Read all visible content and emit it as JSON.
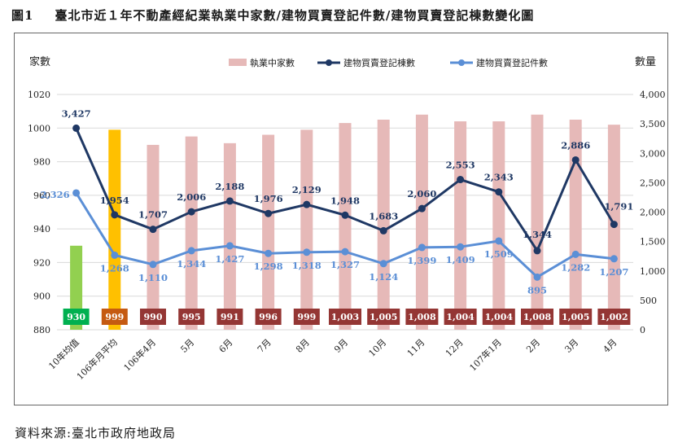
{
  "title": {
    "number": "圖1",
    "text": "臺北市近１年不動產經紀業執業中家數/建物買賣登記件數/建物買賣登記棟數變化圖"
  },
  "source": "資料來源:臺北市政府地政局",
  "colors": {
    "bar_default": "#e6b9b8",
    "bar_first": "#92d050",
    "bar_second": "#ffc000",
    "line_buildings": "#1f3864",
    "line_cases": "#5b8fd6",
    "badge_default": "#943634",
    "badge_first": "#00b050",
    "badge_second": "#c55a11"
  },
  "chart_data": {
    "type": "bar+line",
    "categories": [
      "10年均值",
      "106年月平均",
      "106年4月",
      "5月",
      "6月",
      "7月",
      "8月",
      "9月",
      "10月",
      "11月",
      "12月",
      "107年1月",
      "2月",
      "3月",
      "4月"
    ],
    "left_axis": {
      "label": "家數",
      "min": 880,
      "max": 1020,
      "ticks": [
        "880",
        "900",
        "920",
        "940",
        "960",
        "980",
        "1000",
        "1020"
      ]
    },
    "right_axis": {
      "label": "數量",
      "min": 0,
      "max": 4000,
      "ticks": [
        "0",
        "500",
        "1,000",
        "1,500",
        "2,000",
        "2,500",
        "3,000",
        "3,500",
        "4,000"
      ]
    },
    "series": [
      {
        "name": "執業中家數",
        "kind": "bar",
        "axis": "left",
        "values": [
          930,
          999,
          990,
          995,
          991,
          996,
          999,
          1003,
          1005,
          1008,
          1004,
          1004,
          1008,
          1005,
          1002
        ],
        "labels": [
          "930",
          "999",
          "990",
          "995",
          "991",
          "996",
          "999",
          "1,003",
          "1,005",
          "1,008",
          "1,004",
          "1,004",
          "1,008",
          "1,005",
          "1,002"
        ]
      },
      {
        "name": "建物買賣登記棟數",
        "kind": "line",
        "axis": "right",
        "values": [
          3427,
          1954,
          1707,
          2006,
          2188,
          1976,
          2129,
          1948,
          1683,
          2060,
          2553,
          2343,
          1344,
          2886,
          1791
        ],
        "labels": [
          "3,427",
          "1,954",
          "1,707",
          "2,006",
          "2,188",
          "1,976",
          "2,129",
          "1,948",
          "1,683",
          "2,060",
          "2,553",
          "2,343",
          "1,344",
          "2,886",
          "1,791"
        ]
      },
      {
        "name": "建物買賣登記件數",
        "kind": "line",
        "axis": "right",
        "values": [
          2326,
          1268,
          1110,
          1344,
          1427,
          1298,
          1318,
          1327,
          1124,
          1399,
          1409,
          1509,
          895,
          1282,
          1207
        ],
        "labels": [
          "2,326",
          "1,268",
          "1,110",
          "1,344",
          "1,427",
          "1,298",
          "1,318",
          "1,327",
          "1,124",
          "1,399",
          "1,409",
          "1,509",
          "895",
          "1,282",
          "1,207"
        ]
      }
    ],
    "legend_position": "top-right",
    "grid": true
  }
}
